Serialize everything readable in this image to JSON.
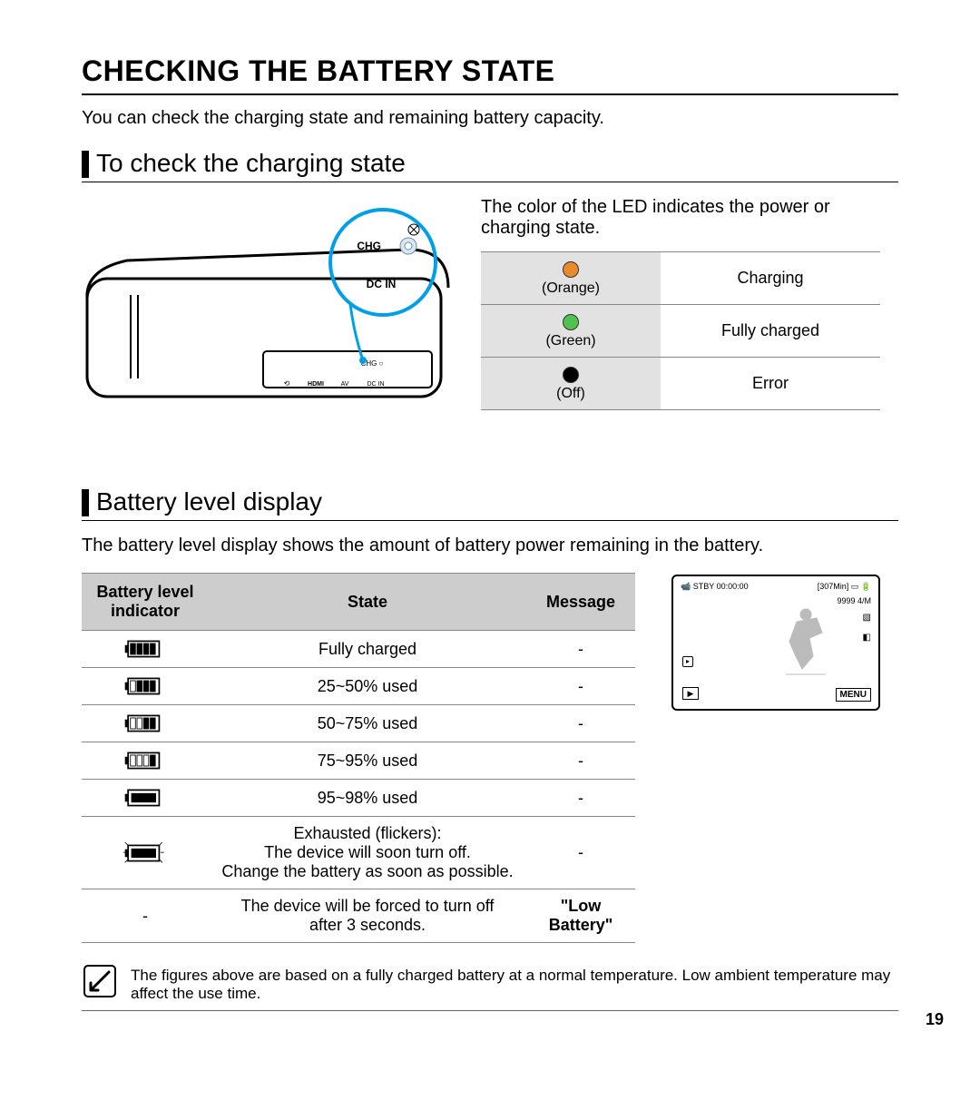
{
  "page_number": "19",
  "main_title": "CHECKING THE BATTERY STATE",
  "intro": "You can check the charging state and remaining battery capacity.",
  "section1": {
    "title": "To check the charging state",
    "led_text": "The color of the LED indicates the power or charging state.",
    "camera_labels": {
      "chg": "CHG",
      "dcin": "DC IN",
      "hdmi": "HDMI",
      "av": "AV",
      "dcin_small": "DC IN",
      "usb": "⟵"
    },
    "led_table": {
      "rows": [
        {
          "color_hex": "#e88b2d",
          "color_name": "(Orange)",
          "status": "Charging"
        },
        {
          "color_hex": "#4fc24f",
          "color_name": "(Green)",
          "status": "Fully charged"
        },
        {
          "color_hex": "#000000",
          "color_name": "(Off)",
          "status": "Error"
        }
      ]
    }
  },
  "section2": {
    "title": "Battery level display",
    "intro": "The battery level display shows the amount of battery power remaining in the battery.",
    "table": {
      "headers": {
        "indicator": "Battery level\nindicator",
        "state": "State",
        "message": "Message"
      },
      "rows": [
        {
          "bars": 4,
          "flicker": false,
          "state": "Fully charged",
          "message": "-"
        },
        {
          "bars": 3,
          "flicker": false,
          "state": "25~50% used",
          "message": "-"
        },
        {
          "bars": 2,
          "flicker": false,
          "state": "50~75% used",
          "message": "-"
        },
        {
          "bars": 1,
          "flicker": false,
          "state": "75~95% used",
          "message": "-"
        },
        {
          "bars": 1,
          "flicker": false,
          "inner_only": true,
          "state": "95~98% used",
          "message": "-"
        },
        {
          "bars": 1,
          "flicker": true,
          "inner_only": true,
          "state": "Exhausted (flickers):\nThe device will soon turn off.\nChange the battery as soon as possible.",
          "message": "-"
        },
        {
          "bars": -1,
          "state": "The device will be forced to turn off\nafter 3 seconds.",
          "message": "\"Low\nBattery\"",
          "message_bold": true,
          "indicator_text": "-"
        }
      ]
    },
    "preview": {
      "top_left": "STBY 00:00:00",
      "top_right": "[307Min]",
      "sub_right": "9999  4/M",
      "menu": "MENU"
    }
  },
  "note": "The figures above are based on a fully charged battery at a normal temperature. Low ambient temperature may affect the use time.",
  "colors": {
    "header_bg": "#cdcdcd",
    "led_cell_bg": "#e2e2e2",
    "callout_stroke": "#00a0e8",
    "text": "#000000"
  }
}
